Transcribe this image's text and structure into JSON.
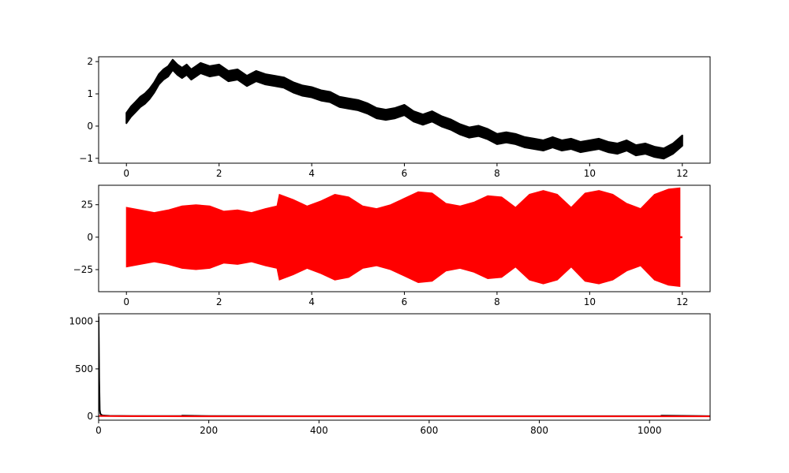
{
  "chart_data": [
    {
      "type": "line",
      "title": "",
      "xlabel": "",
      "ylabel": "",
      "xlim": [
        -0.6,
        12.6
      ],
      "ylim": [
        -1.15,
        2.15
      ],
      "xticks": [
        0,
        2,
        4,
        6,
        8,
        10,
        12
      ],
      "yticks": [
        -1,
        0,
        1,
        2
      ],
      "grid": false,
      "series": [
        {
          "color": "#000000",
          "band": 0.16,
          "x": [
            0,
            0.1,
            0.2,
            0.3,
            0.4,
            0.5,
            0.6,
            0.7,
            0.8,
            0.9,
            1.0,
            1.1,
            1.2,
            1.3,
            1.4,
            1.5,
            1.6,
            1.8,
            2.0,
            2.2,
            2.4,
            2.6,
            2.8,
            3.0,
            3.2,
            3.4,
            3.6,
            3.8,
            4.0,
            4.2,
            4.4,
            4.6,
            4.8,
            5.0,
            5.2,
            5.4,
            5.6,
            5.8,
            6.0,
            6.2,
            6.4,
            6.6,
            6.8,
            7.0,
            7.2,
            7.4,
            7.6,
            7.8,
            8.0,
            8.2,
            8.4,
            8.6,
            8.8,
            9.0,
            9.2,
            9.4,
            9.6,
            9.8,
            10.0,
            10.2,
            10.4,
            10.6,
            10.8,
            11.0,
            11.2,
            11.4,
            11.6,
            11.8,
            12.0
          ],
          "y": [
            0.25,
            0.45,
            0.6,
            0.75,
            0.85,
            1.0,
            1.2,
            1.45,
            1.6,
            1.7,
            1.9,
            1.75,
            1.65,
            1.75,
            1.6,
            1.7,
            1.8,
            1.7,
            1.75,
            1.55,
            1.6,
            1.4,
            1.55,
            1.45,
            1.4,
            1.35,
            1.2,
            1.1,
            1.05,
            0.95,
            0.9,
            0.75,
            0.7,
            0.65,
            0.55,
            0.4,
            0.35,
            0.4,
            0.5,
            0.3,
            0.2,
            0.3,
            0.15,
            0.05,
            -0.1,
            -0.2,
            -0.15,
            -0.25,
            -0.4,
            -0.35,
            -0.4,
            -0.5,
            -0.55,
            -0.6,
            -0.5,
            -0.6,
            -0.55,
            -0.65,
            -0.6,
            -0.55,
            -0.65,
            -0.7,
            -0.6,
            -0.75,
            -0.7,
            -0.8,
            -0.85,
            -0.7,
            -0.45
          ]
        }
      ]
    },
    {
      "type": "line",
      "title": "",
      "xlabel": "",
      "ylabel": "",
      "xlim": [
        -0.6,
        12.6
      ],
      "ylim": [
        -42,
        40
      ],
      "xticks": [
        0,
        2,
        4,
        6,
        8,
        10,
        12
      ],
      "yticks": [
        -25,
        0,
        25
      ],
      "grid": false,
      "series": [
        {
          "color": "#ff0000",
          "style": "envelope",
          "x": [
            0,
            0.3,
            0.6,
            0.9,
            1.2,
            1.5,
            1.8,
            2.1,
            2.4,
            2.7,
            3.0,
            3.25,
            3.3,
            3.6,
            3.9,
            4.2,
            4.5,
            4.8,
            5.1,
            5.4,
            5.7,
            6.0,
            6.3,
            6.6,
            6.9,
            7.2,
            7.5,
            7.8,
            8.1,
            8.4,
            8.7,
            9.0,
            9.3,
            9.6,
            9.9,
            10.2,
            10.5,
            10.8,
            11.1,
            11.4,
            11.7,
            11.95
          ],
          "upper": [
            23,
            21,
            19,
            21,
            24,
            25,
            24,
            20,
            21,
            19,
            22,
            24,
            33,
            29,
            24,
            28,
            33,
            31,
            24,
            22,
            25,
            30,
            35,
            34,
            26,
            24,
            27,
            32,
            31,
            23,
            33,
            36,
            33,
            23,
            34,
            36,
            33,
            26,
            22,
            33,
            37,
            38
          ],
          "lower": [
            -23,
            -21,
            -19,
            -21,
            -24,
            -25,
            -24,
            -20,
            -21,
            -19,
            -22,
            -24,
            -33,
            -29,
            -24,
            -28,
            -33,
            -31,
            -24,
            -22,
            -25,
            -30,
            -35,
            -34,
            -26,
            -24,
            -27,
            -32,
            -31,
            -23,
            -33,
            -36,
            -33,
            -23,
            -34,
            -36,
            -33,
            -26,
            -22,
            -33,
            -37,
            -38
          ],
          "tail_x": [
            11.95,
            12.0
          ],
          "tail_y": [
            0,
            0
          ]
        }
      ]
    },
    {
      "type": "line",
      "title": "",
      "xlabel": "",
      "ylabel": "",
      "xlim": [
        0,
        1110
      ],
      "ylim": [
        -40,
        1080
      ],
      "xticks": [
        0,
        200,
        400,
        600,
        800,
        1000
      ],
      "yticks": [
        0,
        500,
        1000
      ],
      "grid": false,
      "series": [
        {
          "color": "#000000",
          "x": [
            0,
            1,
            2,
            3,
            5,
            8,
            12,
            20,
            40,
            60,
            100,
            150,
            152,
            200,
            400,
            600,
            800,
            1020,
            1022,
            1110
          ],
          "y": [
            1050,
            400,
            70,
            30,
            15,
            10,
            8,
            6,
            5,
            4,
            4,
            3,
            8,
            3,
            2,
            2,
            2,
            3,
            8,
            2
          ]
        },
        {
          "color": "#ff0000",
          "x": [
            0,
            2,
            5,
            10,
            50,
            200,
            600,
            1110
          ],
          "y": [
            5,
            5,
            4,
            3,
            2,
            1,
            1,
            1
          ]
        }
      ]
    }
  ]
}
